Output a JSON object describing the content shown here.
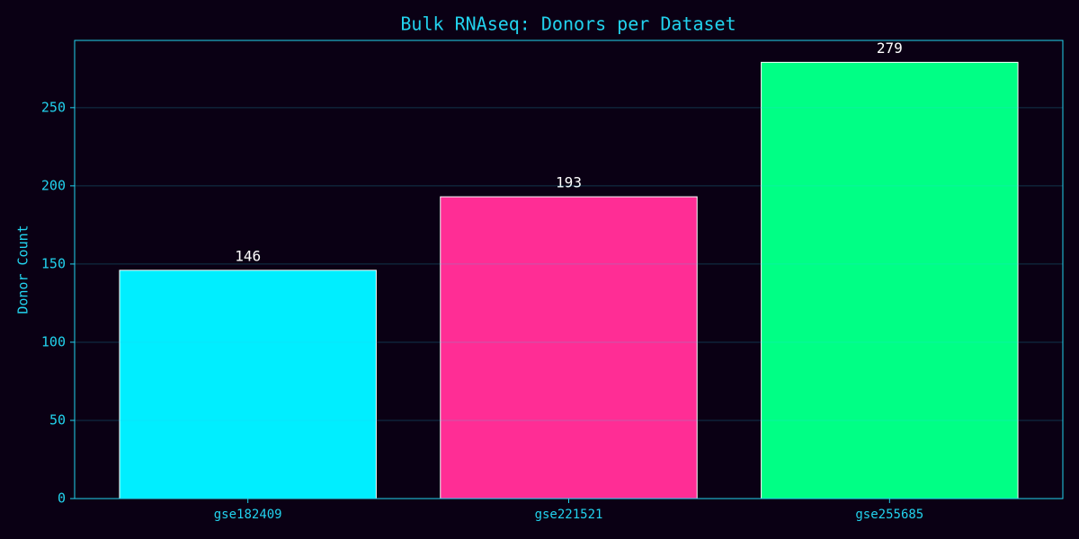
{
  "chart_data": {
    "type": "bar",
    "title": "Bulk RNAseq: Donors per Dataset",
    "ylabel": "Donor Count",
    "categories": [
      "gse182409",
      "gse221521",
      "gse255685"
    ],
    "values": [
      146,
      193,
      279
    ],
    "colors": [
      "#00eeff",
      "#ff2d95",
      "#00ff85"
    ],
    "ylim": [
      0,
      293
    ],
    "yticks": [
      0,
      50,
      100,
      150,
      200,
      250
    ],
    "grid": true
  }
}
